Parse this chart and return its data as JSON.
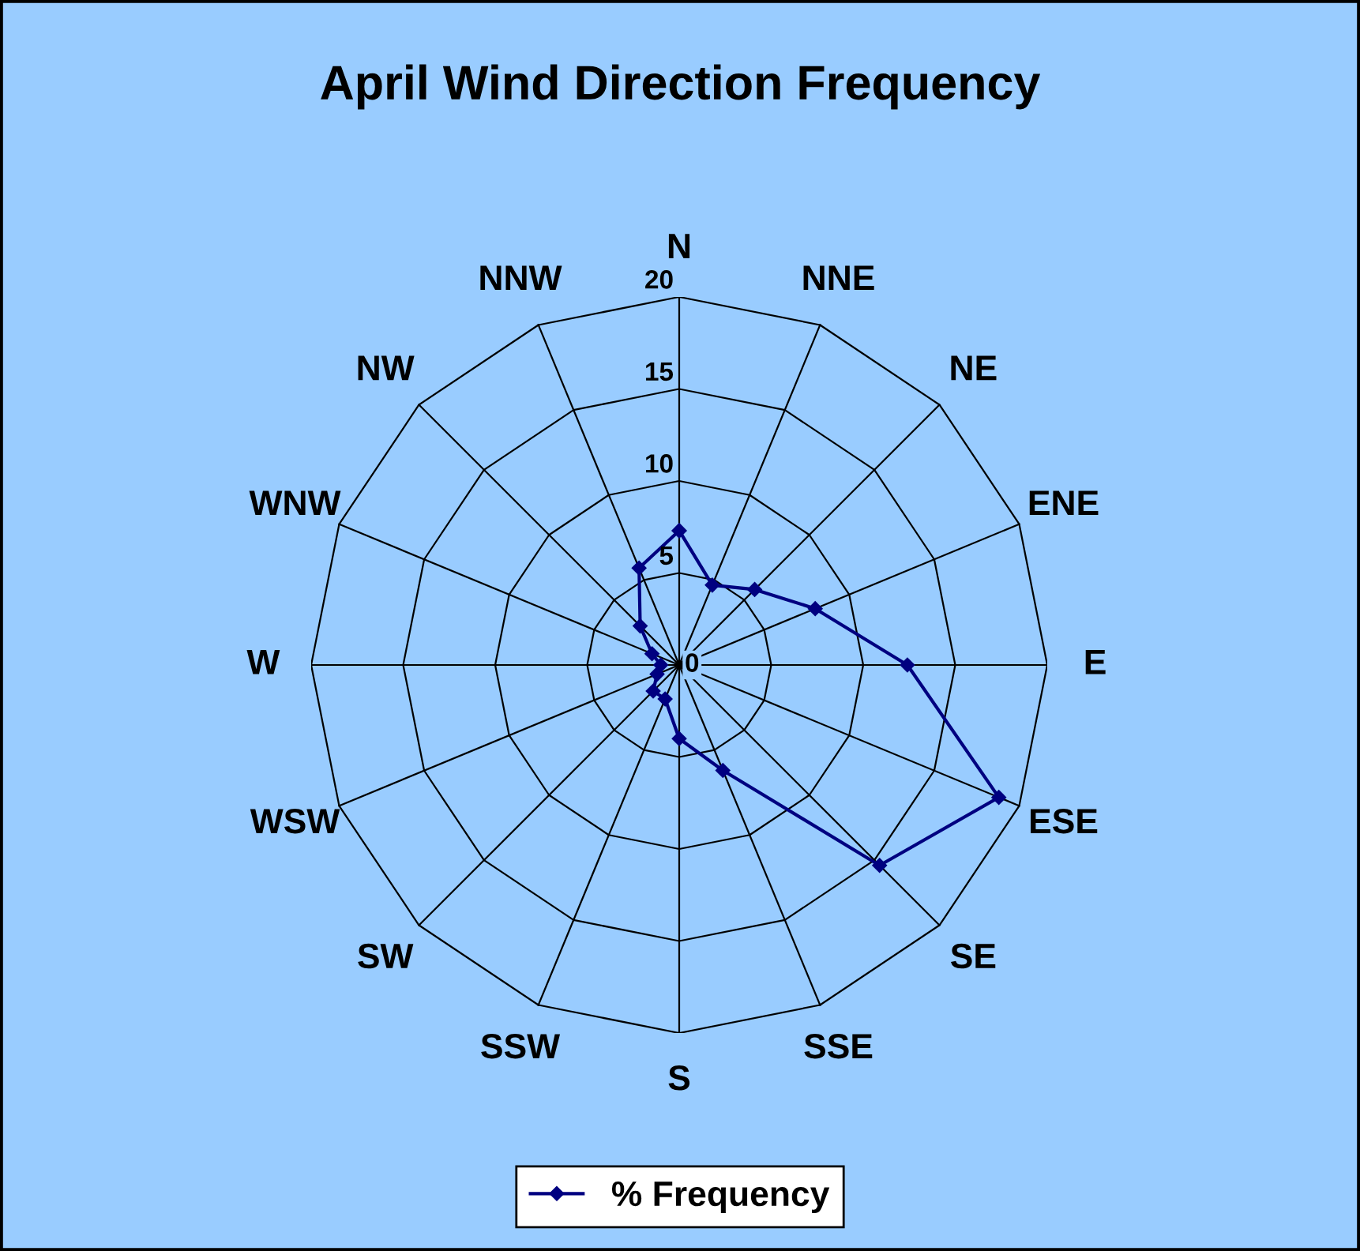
{
  "chart_data": {
    "type": "radar",
    "title": "April Wind Direction Frequency",
    "categories": [
      "N",
      "NNE",
      "NE",
      "ENE",
      "E",
      "ESE",
      "SE",
      "SSE",
      "S",
      "SSW",
      "SW",
      "WSW",
      "W",
      "WNW",
      "NW",
      "NNW"
    ],
    "series": [
      {
        "name": "% Frequency",
        "color": "#000080",
        "values": [
          7.3,
          4.7,
          5.8,
          8.0,
          12.4,
          18.8,
          15.4,
          6.2,
          4.0,
          2.0,
          2.0,
          1.3,
          1.0,
          1.6,
          3.0,
          5.7
        ]
      }
    ],
    "ylim": [
      0,
      20
    ],
    "yticks": [
      0,
      5,
      10,
      15,
      20
    ],
    "marker": "diamond",
    "legend": "bottom",
    "grid": true
  }
}
